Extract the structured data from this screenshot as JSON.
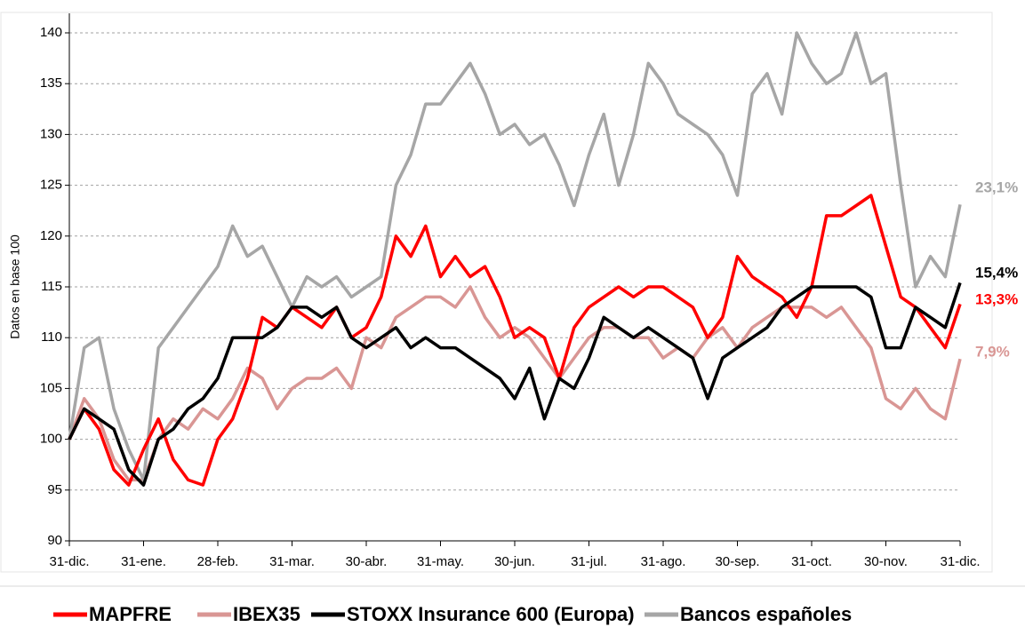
{
  "chart_data": {
    "type": "line",
    "y_label": "Datos en base 100",
    "categories": [
      "31-dic.",
      null,
      null,
      null,
      null,
      "31-ene.",
      null,
      null,
      null,
      null,
      "28-feb.",
      null,
      null,
      null,
      null,
      "31-mar.",
      null,
      null,
      null,
      null,
      "30-abr.",
      null,
      null,
      null,
      null,
      "31-may.",
      null,
      null,
      null,
      null,
      "30-jun.",
      null,
      null,
      null,
      null,
      "31-jul.",
      null,
      null,
      null,
      null,
      "31-ago.",
      null,
      null,
      null,
      null,
      "30-sep.",
      null,
      null,
      null,
      null,
      "31-oct.",
      null,
      null,
      null,
      null,
      "30-nov.",
      null,
      null,
      null,
      null,
      "31-dic."
    ],
    "ylim": [
      90,
      140
    ],
    "yticks": [
      90,
      95,
      100,
      105,
      110,
      115,
      120,
      125,
      130,
      135,
      140
    ],
    "grid": true,
    "legend": "bottom",
    "series": [
      {
        "name": "MAPFRE",
        "color": "#ff0000",
        "end_label": "13,3%",
        "values": [
          100,
          103,
          101,
          97,
          95.5,
          99,
          102,
          98,
          96,
          95.5,
          100,
          102,
          106,
          112,
          111,
          113,
          112,
          111,
          113,
          110,
          111,
          114,
          120,
          118,
          121,
          116,
          118,
          116,
          117,
          114,
          110,
          111,
          110,
          106,
          111,
          113,
          114,
          115,
          114,
          115,
          115,
          114,
          113,
          110,
          112,
          118,
          116,
          115,
          114,
          112,
          115,
          122,
          122,
          123,
          124,
          119,
          114,
          113,
          111,
          109,
          113.3
        ]
      },
      {
        "name": "IBEX35",
        "color": "#d99694",
        "end_label": "7,9%",
        "values": [
          100,
          104,
          102,
          98,
          96,
          96,
          100,
          102,
          101,
          103,
          102,
          104,
          107,
          106,
          103,
          105,
          106,
          106,
          107,
          105,
          110,
          109,
          112,
          113,
          114,
          114,
          113,
          115,
          112,
          110,
          111,
          110,
          108,
          106,
          108,
          110,
          111,
          111,
          110,
          110,
          108,
          109,
          108,
          110,
          111,
          109,
          111,
          112,
          113,
          113,
          113,
          112,
          113,
          111,
          109,
          104,
          103,
          105,
          103,
          102,
          107.9
        ]
      },
      {
        "name": "STOXX Insurance 600 (Europa)",
        "color": "#000000",
        "end_label": "15,4%",
        "values": [
          100,
          103,
          102,
          101,
          97,
          95.5,
          100,
          101,
          103,
          104,
          106,
          110,
          110,
          110,
          111,
          113,
          113,
          112,
          113,
          110,
          109,
          110,
          111,
          109,
          110,
          109,
          109,
          108,
          107,
          106,
          104,
          107,
          102,
          106,
          105,
          108,
          112,
          111,
          110,
          111,
          110,
          109,
          108,
          104,
          108,
          109,
          110,
          111,
          113,
          114,
          115,
          115,
          115,
          115,
          114,
          109,
          109,
          113,
          112,
          111,
          115.4
        ]
      },
      {
        "name": "Bancos españoles",
        "color": "#a6a6a6",
        "end_label": "23,1%",
        "values": [
          100,
          109,
          110,
          103,
          99,
          96,
          109,
          111,
          113,
          115,
          117,
          121,
          118,
          119,
          116,
          113,
          116,
          115,
          116,
          114,
          115,
          116,
          125,
          128,
          133,
          133,
          135,
          137,
          134,
          130,
          131,
          129,
          130,
          127,
          123,
          128,
          132,
          125,
          130,
          137,
          135,
          132,
          131,
          130,
          128,
          124,
          134,
          136,
          132,
          140,
          137,
          135,
          136,
          140,
          135,
          136,
          125,
          115,
          118,
          116,
          123.1
        ]
      }
    ]
  }
}
